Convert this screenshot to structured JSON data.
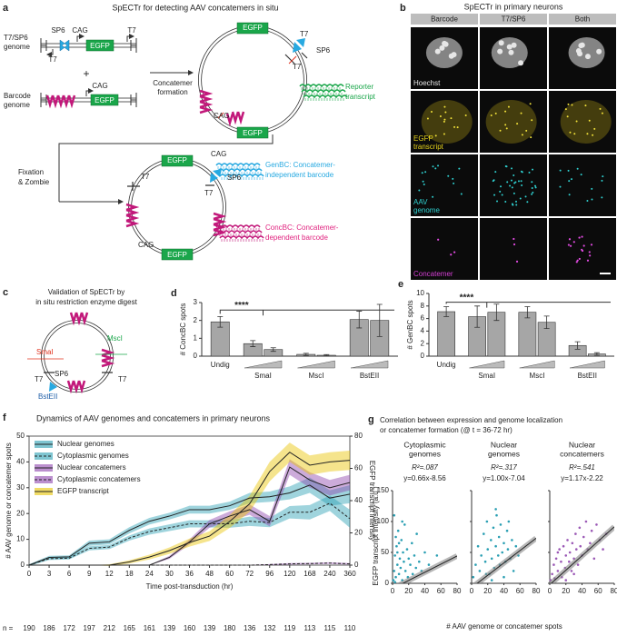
{
  "panels": {
    "a": {
      "letter": "a",
      "title": "SpECTr for detecting AAV concatemers in situ",
      "t7sp6_genome": [
        "T7/SP6",
        "genome"
      ],
      "barcode_genome": [
        "Barcode",
        "genome"
      ],
      "plus": "+",
      "sp6": "SP6",
      "cag": "CAG",
      "t7": "T7",
      "egfp": "EGFP",
      "concatemer_formation": [
        "Concatemer",
        "formation"
      ],
      "reporter": [
        "Reporter",
        "transcript"
      ],
      "fixation": [
        "Fixation",
        "& Zombie"
      ],
      "genbc": [
        "GenBC: Concatemer-",
        "independent barcode"
      ],
      "concbc": [
        "ConcBC: Concatemer-",
        "dependent barcode"
      ]
    },
    "b": {
      "letter": "b",
      "title": "SpECTr in primary neurons",
      "columns": [
        "Barcode",
        "T7/SP6",
        "Both"
      ],
      "rows": [
        [
          "Hoechst"
        ],
        [
          "EGFP",
          "transcript"
        ],
        [
          "AAV",
          "genome"
        ],
        [
          "Concatemer"
        ]
      ]
    },
    "c": {
      "letter": "c",
      "title": [
        "Validation of SpECTr by",
        "in situ restriction enzyme digest"
      ],
      "smai": "SmaI",
      "msci": "MscI",
      "t7": "T7",
      "sp6": "SP6",
      "bsteii": "BstEII"
    },
    "g": {
      "letter": "g",
      "title": [
        "Correlation between expression and genome localization",
        "or concatemer formation (@ t = 36-72 hr)"
      ],
      "y_label": "EGFP transcript intensity (a.u.)",
      "x_label": "# AAV genome or concatemer spots"
    }
  },
  "chart_data": [
    {
      "type": "bar",
      "letter": "d",
      "y_label": "# ConcBC spots",
      "ylim": [
        0,
        3
      ],
      "yticks": [
        0,
        1,
        2,
        3
      ],
      "color": "#a6a6a6",
      "significance": "****",
      "groups": [
        {
          "name": "Undig",
          "values": [
            1.92
          ],
          "errors": [
            0.3
          ]
        },
        {
          "name": "SmaI",
          "values": [
            0.7,
            0.37
          ],
          "errors": [
            0.17,
            0.1
          ]
        },
        {
          "name": "MscI",
          "values": [
            0.1,
            0.05
          ],
          "errors": [
            0.06,
            0.04
          ]
        },
        {
          "name": "BstEII",
          "values": [
            2.05,
            2.0
          ],
          "errors": [
            0.47,
            0.9
          ]
        }
      ]
    },
    {
      "type": "bar",
      "letter": "e",
      "y_label": "# GenBC spots",
      "ylim": [
        0,
        10
      ],
      "yticks": [
        0,
        2,
        4,
        6,
        8,
        10
      ],
      "color": "#a6a6a6",
      "significance": "****",
      "groups": [
        {
          "name": "Undig",
          "values": [
            7.1
          ],
          "errors": [
            0.8
          ]
        },
        {
          "name": "SmaI",
          "values": [
            6.3,
            7.0
          ],
          "errors": [
            1.7,
            1.3
          ]
        },
        {
          "name": "MscI",
          "values": [
            7.0,
            5.4
          ],
          "errors": [
            0.9,
            1.0
          ]
        },
        {
          "name": "BstEII",
          "values": [
            1.7,
            0.35
          ],
          "errors": [
            0.6,
            0.2
          ]
        }
      ]
    },
    {
      "type": "line",
      "letter": "f",
      "title": "Dynamics of AAV genomes and concatemers in primary neurons",
      "x_label": "Time post-transduction (hr)",
      "y_label": "# AAV genome or concatemer spots",
      "y2_label": "EGFP transcript intensity",
      "legend": "upper left",
      "categories": [
        "0",
        "3",
        "6",
        "9",
        "12",
        "18",
        "24",
        "30",
        "36",
        "48",
        "60",
        "72",
        "96",
        "120",
        "168",
        "240",
        "360"
      ],
      "n_label": "n =",
      "n": [
        190,
        186,
        172,
        197,
        212,
        165,
        161,
        139,
        160,
        139,
        180,
        136,
        132,
        119,
        113,
        115,
        110
      ],
      "ylim": [
        0,
        50
      ],
      "yticks": [
        0,
        10,
        20,
        30,
        40,
        50
      ],
      "y2lim": [
        0,
        80
      ],
      "y2ticks": [
        0,
        20,
        40,
        60,
        80
      ],
      "series": [
        {
          "name": "Nuclear genomes",
          "color": "#2a9fb3",
          "dashed": false,
          "values": [
            0,
            3,
            3.2,
            8.5,
            9,
            13.5,
            17,
            19,
            21.5,
            21.5,
            23,
            26,
            26.5,
            28,
            31,
            26,
            27.5
          ],
          "errors": [
            0.3,
            0.6,
            0.6,
            1,
            1,
            1.2,
            1.3,
            1.3,
            1.5,
            1.5,
            1.6,
            2,
            2,
            2.5,
            3,
            3,
            3.5
          ]
        },
        {
          "name": "Cytoplasmic genomes",
          "color": "#2a9fb3",
          "dashed": true,
          "values": [
            0,
            2.5,
            2.7,
            6.5,
            7,
            10.5,
            13,
            14.5,
            16,
            16,
            16,
            17,
            16.5,
            20.5,
            20.5,
            24,
            18
          ],
          "errors": [
            0.3,
            0.5,
            0.5,
            0.8,
            0.8,
            1,
            1.2,
            1.3,
            1.4,
            1.4,
            1.5,
            1.8,
            1.8,
            2.4,
            2.8,
            3,
            3.5
          ]
        },
        {
          "name": "Nuclear concatemers",
          "color": "#8e44ad",
          "dashed": false,
          "values": [
            0,
            0,
            0,
            0,
            0,
            0,
            0,
            3,
            9,
            16,
            19,
            21.5,
            17,
            38,
            33,
            30,
            32
          ],
          "errors": [
            0,
            0,
            0,
            0,
            0,
            0,
            0,
            0.6,
            1,
            1.5,
            1.8,
            2,
            2,
            3,
            3,
            3,
            3
          ]
        },
        {
          "name": "Cytoplasmic concatemers",
          "color": "#8e44ad",
          "dashed": true,
          "values": [
            0,
            0,
            0,
            0,
            0,
            0,
            0,
            0,
            0,
            0,
            0,
            0,
            0.2,
            0.5,
            0.6,
            0.8,
            0.5
          ],
          "errors": [
            0,
            0,
            0,
            0,
            0,
            0,
            0,
            0,
            0,
            0,
            0,
            0,
            0.2,
            0.3,
            0.3,
            0.3,
            0.3
          ]
        },
        {
          "name": "EGFP transcript",
          "color": "#e8c400",
          "dashed": false,
          "axis": "y2",
          "values": [
            0,
            0,
            0,
            0,
            0,
            2,
            5,
            9,
            14,
            18,
            27,
            38,
            58,
            70,
            62,
            64,
            65
          ],
          "errors": [
            0,
            0,
            0,
            0,
            0.5,
            1,
            1.5,
            2,
            2.5,
            3,
            4,
            5,
            6,
            6,
            6,
            6,
            6
          ]
        }
      ]
    },
    {
      "type": "scatter",
      "title": [
        "Cytoplasmic",
        "genomes"
      ],
      "r2_label": "R²=.087",
      "fit_label": "y=0.66x-8.56",
      "fit": {
        "slope": 0.66,
        "intercept": -8.56
      },
      "color": "#2a9fb3",
      "xlim": [
        0,
        80
      ],
      "xticks": [
        0,
        20,
        40,
        60,
        80
      ],
      "ylim": [
        0,
        150
      ],
      "yticks": [
        0,
        50,
        100,
        150
      ],
      "x": [
        1,
        2,
        3,
        4,
        5,
        6,
        7,
        8,
        9,
        10,
        11,
        12,
        13,
        14,
        15,
        16,
        18,
        19,
        20,
        22,
        24,
        25,
        27,
        29,
        30,
        33,
        36,
        40,
        45,
        2,
        4,
        6,
        3,
        8,
        12,
        55
      ],
      "y": [
        5,
        20,
        45,
        10,
        60,
        30,
        85,
        15,
        40,
        25,
        70,
        5,
        50,
        35,
        95,
        20,
        55,
        10,
        40,
        30,
        65,
        15,
        45,
        25,
        80,
        35,
        20,
        50,
        30,
        110,
        75,
        50,
        2,
        65,
        100,
        45
      ]
    },
    {
      "type": "scatter",
      "title": [
        "Nuclear",
        "genomes"
      ],
      "r2_label": "R²=.317",
      "fit_label": "y=1.00x-7.04",
      "fit": {
        "slope": 1.0,
        "intercept": -7.04
      },
      "color": "#2a9fb3",
      "xlim": [
        0,
        80
      ],
      "xticks": [
        0,
        20,
        40,
        60,
        80
      ],
      "ylim": [
        0,
        150
      ],
      "yticks": [
        0,
        50,
        100,
        150
      ],
      "x": [
        2,
        5,
        8,
        10,
        12,
        15,
        17,
        19,
        20,
        22,
        24,
        25,
        27,
        28,
        30,
        31,
        33,
        34,
        35,
        36,
        38,
        40,
        42,
        44,
        45,
        48,
        50,
        52,
        55,
        58,
        30,
        25,
        18,
        40,
        46
      ],
      "y": [
        10,
        30,
        60,
        20,
        45,
        80,
        35,
        100,
        55,
        15,
        70,
        40,
        90,
        25,
        60,
        110,
        45,
        75,
        30,
        95,
        50,
        65,
        35,
        85,
        55,
        40,
        70,
        20,
        60,
        45,
        120,
        5,
        15,
        10,
        100
      ]
    },
    {
      "type": "scatter",
      "title": [
        "Nuclear",
        "concatemers"
      ],
      "r2_label": "R²=.541",
      "fit_label": "y=1.17x-2.22",
      "fit": {
        "slope": 1.17,
        "intercept": -2.22
      },
      "color": "#9b59b6",
      "xlim": [
        0,
        80
      ],
      "xticks": [
        0,
        20,
        40,
        60,
        80
      ],
      "ylim": [
        0,
        150
      ],
      "yticks": [
        0,
        50,
        100,
        150
      ],
      "x": [
        1,
        3,
        5,
        6,
        8,
        10,
        12,
        14,
        15,
        17,
        19,
        20,
        22,
        24,
        25,
        27,
        28,
        30,
        32,
        33,
        35,
        37,
        38,
        40,
        42,
        45,
        47,
        50,
        52,
        55,
        58,
        62,
        66,
        70,
        10,
        20,
        30
      ],
      "y": [
        5,
        15,
        30,
        8,
        40,
        20,
        55,
        35,
        10,
        60,
        25,
        45,
        70,
        35,
        50,
        20,
        65,
        40,
        80,
        55,
        30,
        90,
        60,
        45,
        75,
        100,
        55,
        65,
        85,
        40,
        95,
        70,
        55,
        80,
        50,
        5,
        15
      ]
    }
  ]
}
